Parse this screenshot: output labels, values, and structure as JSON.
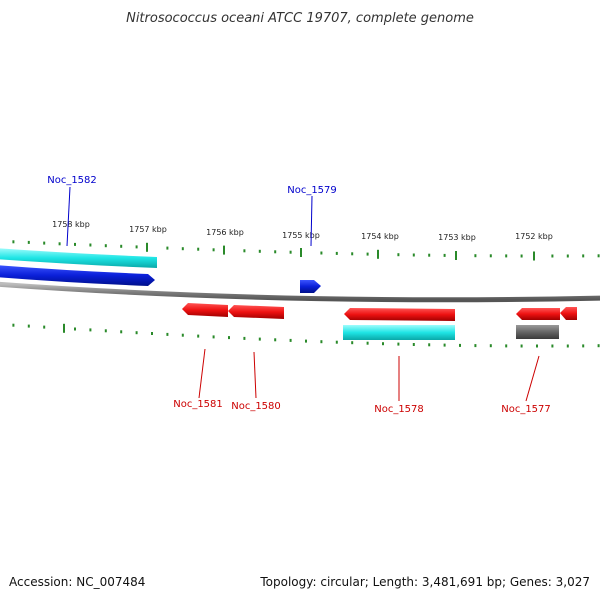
{
  "title": "Nitrosococcus oceani ATCC 19707, complete genome",
  "footer": {
    "accession": "Accession: NC_007484",
    "topology": "Topology: circular; Length: 3,481,691 bp; Genes: 3,027"
  },
  "colors": {
    "forward_label": "#0000cc",
    "reverse_label": "#cc0000",
    "tick": "#2a8a2a",
    "backbone": "#888888",
    "cyan_track": "#1ee5e5",
    "blue_gene": "#0a1fd8",
    "red_gene": "#ee1111",
    "gray_gene": "#666666"
  },
  "ticks": [
    {
      "label": "1758 kbp"
    },
    {
      "label": "1757 kbp"
    },
    {
      "label": "1756 kbp"
    },
    {
      "label": "1755 kbp"
    },
    {
      "label": "1754 kbp"
    },
    {
      "label": "1753 kbp"
    },
    {
      "label": "1752 kbp"
    }
  ],
  "genes": [
    {
      "label": "Noc_1582",
      "strand": "forward"
    },
    {
      "label": "Noc_1579",
      "strand": "forward"
    },
    {
      "label": "Noc_1581",
      "strand": "reverse"
    },
    {
      "label": "Noc_1580",
      "strand": "reverse"
    },
    {
      "label": "Noc_1578",
      "strand": "reverse"
    },
    {
      "label": "Noc_1577",
      "strand": "reverse"
    }
  ]
}
